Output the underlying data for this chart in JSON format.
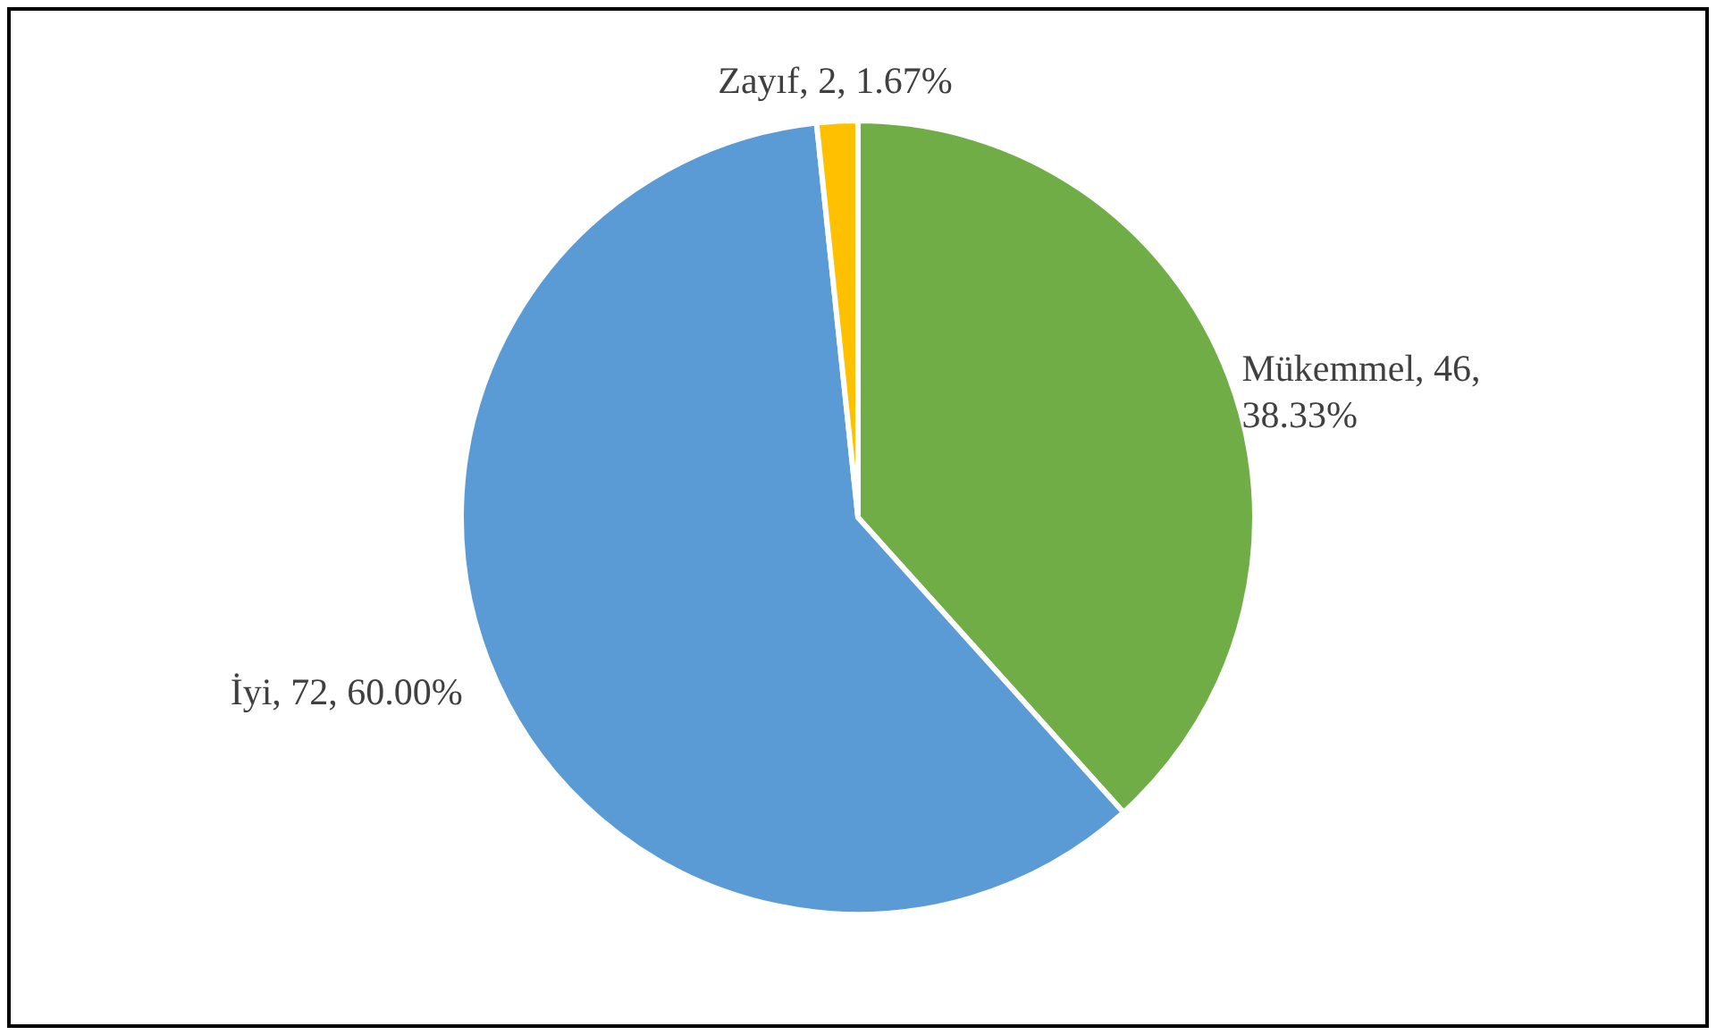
{
  "chart_data": {
    "type": "pie",
    "categories": [
      "Mükemmel",
      "İyi",
      "Zayıf"
    ],
    "values": [
      46,
      72,
      2
    ],
    "colors": [
      "#70ad47",
      "#5b9bd5",
      "#ffc000"
    ],
    "value_labels": [
      "46,\n38.33%",
      "72, 60.00%",
      "2, 1.67%"
    ]
  }
}
